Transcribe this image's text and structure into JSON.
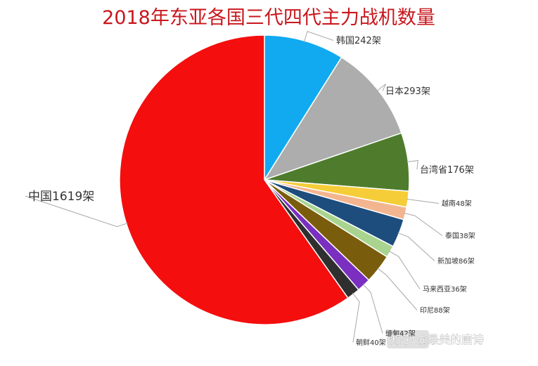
{
  "chart_data": {
    "type": "pie",
    "title": "2018年东亚各国三代四代主力战机数量",
    "slices": [
      {
        "label": "韩国242架",
        "value": 242,
        "color": "#11aaf0"
      },
      {
        "label": "日本293架",
        "value": 293,
        "color": "#adadad"
      },
      {
        "label": "台湾省176架",
        "value": 176,
        "color": "#4e7c2c"
      },
      {
        "label": "越南48架",
        "value": 48,
        "color": "#f5cd38"
      },
      {
        "label": "泰国38架",
        "value": 38,
        "color": "#f2b58f"
      },
      {
        "label": "新加坡86架",
        "value": 86,
        "color": "#1d4d7d"
      },
      {
        "label": "马来西亚36架",
        "value": 36,
        "color": "#a9d48f"
      },
      {
        "label": "印尼88架",
        "value": 88,
        "color": "#7a5d0c"
      },
      {
        "label": "缅甸42架",
        "value": 42,
        "color": "#7a2fc0"
      },
      {
        "label": "朝鲜40架",
        "value": 40,
        "color": "#2f2f2f"
      },
      {
        "label": "中国1619架",
        "value": 1619,
        "color": "#f40e0e"
      }
    ]
  },
  "watermark": "知乎 @最美的唐诗"
}
